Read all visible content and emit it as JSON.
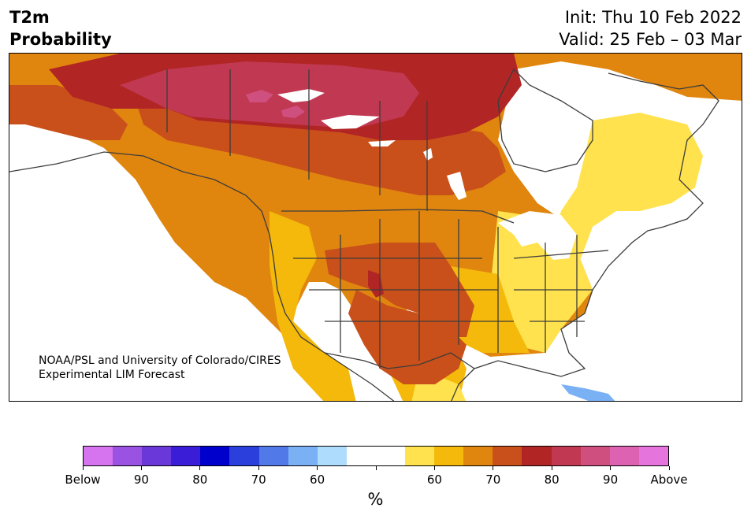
{
  "header": {
    "title_line1": "T2m",
    "title_line2": "Probability",
    "init": "Init: Thu 10 Feb 2022",
    "valid": "Valid: 25 Feb – 03 Mar"
  },
  "credit": {
    "line1": "NOAA/PSL and University of Colorado/CIRES",
    "line2": "Experimental LIM Forecast"
  },
  "colorbar": {
    "unit": "%",
    "colors": [
      "#d673ee",
      "#9a52e3",
      "#6a38d8",
      "#3a1dd6",
      "#0000cc",
      "#2a3fdc",
      "#5179e8",
      "#7ab1f5",
      "#aedcfc",
      "#ffffff",
      "#ffffff",
      "#ffe24d",
      "#f4b90a",
      "#e0860f",
      "#c9501a",
      "#b22525",
      "#c13852",
      "#cf4f7e",
      "#dd62b1",
      "#e674dd"
    ],
    "tick_labels": [
      "Below",
      "90",
      "80",
      "70",
      "60",
      "",
      "60",
      "70",
      "80",
      "90",
      "Above"
    ]
  },
  "map": {
    "colors": {
      "c50": "#ffe24d",
      "c60": "#f4b90a",
      "c65": "#e0860f",
      "c70": "#c9501a",
      "c80": "#b22525",
      "c85": "#c13852",
      "c90": "#cf4f7e",
      "cold": "#7ab1f5",
      "border": "#3c3c3c"
    }
  }
}
